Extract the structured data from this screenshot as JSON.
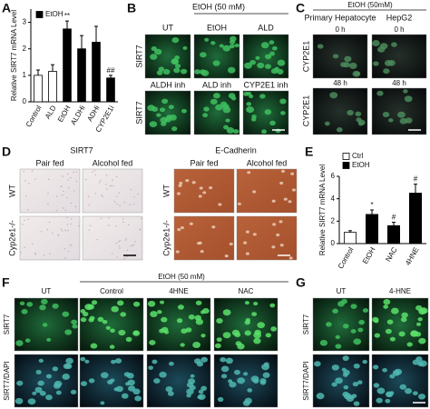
{
  "chart_data": [
    {
      "type": "bar",
      "ylabel": "Relative SIRT7 mRNA Level",
      "categories": [
        "Control",
        "ALD",
        "EtOH",
        "ALDHi",
        "ADHi",
        "CYP2E1i"
      ],
      "values": [
        1.0,
        1.15,
        2.75,
        2.0,
        2.25,
        0.9
      ],
      "errors": [
        0.2,
        0.25,
        0.3,
        0.5,
        0.6,
        0.1
      ],
      "colors": [
        "#ffffff",
        "#ffffff",
        "#000000",
        "#000000",
        "#000000",
        "#000000"
      ],
      "markers": [
        null,
        null,
        "**",
        null,
        null,
        "##"
      ],
      "legend": [
        {
          "name": "EtOH",
          "color": "#000000"
        }
      ],
      "ylim": [
        0,
        3.5
      ],
      "yticks": [
        0,
        1,
        2,
        3
      ]
    },
    {
      "type": "bar",
      "ylabel": "Relative SIRT7 mRNA Level",
      "categories": [
        "Control",
        "EtOH",
        "NAC",
        "4HNE"
      ],
      "values": [
        1.0,
        2.6,
        1.6,
        4.5
      ],
      "errors": [
        0.15,
        0.4,
        0.3,
        0.8
      ],
      "colors": [
        "#ffffff",
        "#000000",
        "#000000",
        "#000000"
      ],
      "markers": [
        null,
        "*",
        "#",
        "#"
      ],
      "legend": [
        {
          "name": "Ctrl",
          "color": "#ffffff"
        },
        {
          "name": "EtOH",
          "color": "#000000"
        }
      ],
      "ylim": [
        0,
        6
      ],
      "yticks": [
        0,
        2,
        4,
        6
      ]
    }
  ],
  "figure": {
    "panel_labels": [
      "A",
      "B",
      "C",
      "D",
      "E",
      "F",
      "G"
    ],
    "B": {
      "header": "EtOH (50 mM)",
      "columns": [
        "UT",
        "EtOH",
        "ALD",
        "ALDH inh",
        "ALD inh",
        "CYP2E1 inh"
      ],
      "row_labels": [
        "SIRT7",
        "SIRT7"
      ]
    },
    "C": {
      "header": "EtOH (50mM)",
      "columns": [
        "Primary Hepatocyte",
        "HepG2"
      ],
      "times": [
        "0 h",
        "0 h",
        "48 h",
        "48 h"
      ],
      "row_labels": [
        "CYP2E1",
        "CYP2E1"
      ]
    },
    "D": {
      "groups": [
        {
          "title": "SIRT7",
          "columns": [
            "Pair fed",
            "Alcohol fed"
          ],
          "row_labels": [
            "WT",
            "Cyp2e1-/-"
          ]
        },
        {
          "title": "E-Cadherin",
          "columns": [
            "Pair fed",
            "Alcohol fed"
          ],
          "row_labels": [
            "WT",
            "Cyp2e1-/-"
          ]
        }
      ]
    },
    "F": {
      "header": "EtOH (50 mM)",
      "columns": [
        "UT",
        "Control",
        "4HNE",
        "NAC"
      ],
      "row_labels": [
        "SIRT7",
        "SIRT7/DAPI"
      ]
    },
    "G": {
      "columns": [
        "UT",
        "4-HNE"
      ],
      "row_labels": [
        "SIRT7",
        "SIRT7/DAPI"
      ]
    }
  }
}
